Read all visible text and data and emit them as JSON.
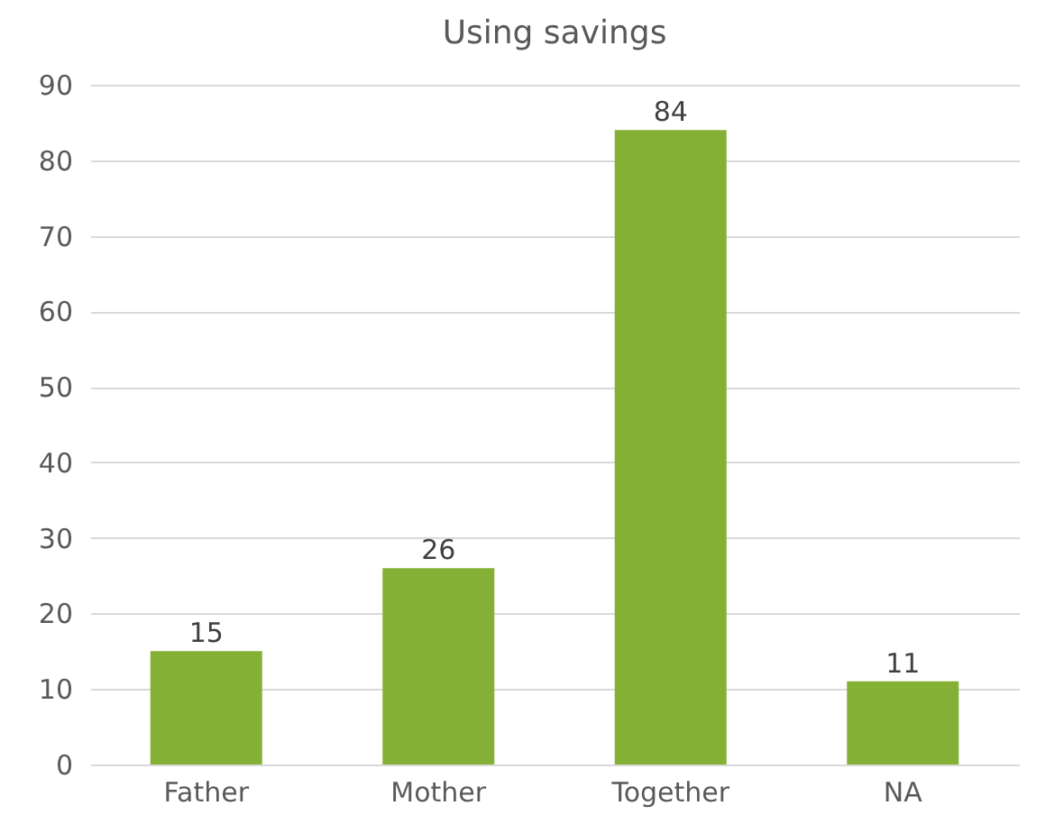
{
  "chart_data": {
    "type": "bar",
    "title": "Using savings",
    "categories": [
      "Father",
      "Mother",
      "Together",
      "NA"
    ],
    "values": [
      15,
      26,
      84,
      11
    ],
    "color": "#84b135",
    "ylim": [
      0,
      90
    ],
    "yticks": [
      0,
      10,
      20,
      30,
      40,
      50,
      60,
      70,
      80,
      90
    ],
    "grid": "y",
    "data_labels": true
  }
}
